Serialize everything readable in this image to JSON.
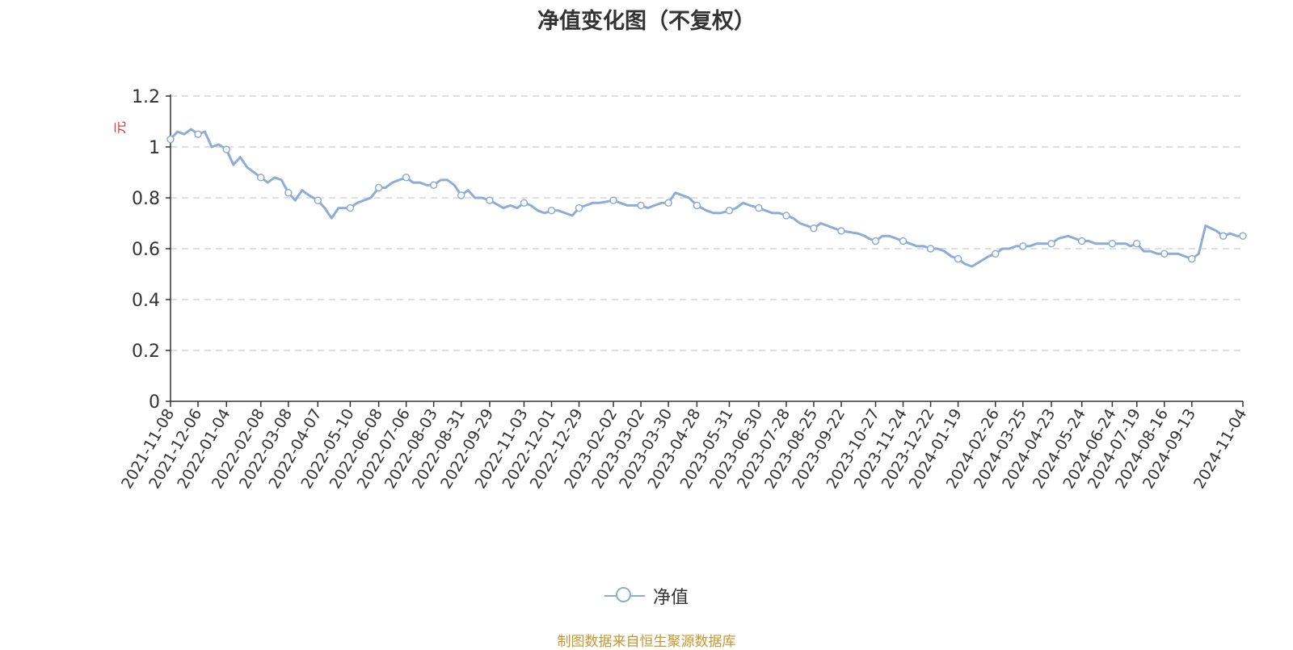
{
  "colors": {
    "series": "#8eacd6",
    "unit": "#e03030",
    "source": "#c8962e",
    "grid": "#cccccc",
    "text": "#333333"
  },
  "chart_data": {
    "type": "line",
    "title": "净值变化图（不复权）",
    "ylabel": "元",
    "ylim": [
      0,
      1.2
    ],
    "yticks": [
      "0",
      "0.2",
      "0.4",
      "0.6",
      "0.8",
      "1",
      "1.2"
    ],
    "grid": true,
    "legend_position": "bottom-center",
    "x_tick_labels": [
      "2021-11-08",
      "2021-12-06",
      "2022-01-04",
      "2022-02-08",
      "2022-03-08",
      "2022-04-07",
      "2022-05-10",
      "2022-06-08",
      "2022-07-06",
      "2022-08-03",
      "2022-08-31",
      "2022-09-29",
      "2022-11-03",
      "2022-12-01",
      "2022-12-29",
      "2023-02-02",
      "2023-03-02",
      "2023-03-30",
      "2023-04-28",
      "2023-05-31",
      "2023-06-30",
      "2023-07-28",
      "2023-08-25",
      "2023-09-22",
      "2023-10-27",
      "2023-11-24",
      "2023-12-22",
      "2024-01-19",
      "2024-02-26",
      "2024-03-25",
      "2024-04-23",
      "2024-05-24",
      "2024-06-24",
      "2024-07-19",
      "2024-08-16",
      "2024-09-13",
      "2024-11-04"
    ],
    "series": [
      {
        "name": "净值",
        "x": [
          "2021-11-08",
          "2021-11-15",
          "2021-11-22",
          "2021-11-29",
          "2021-12-06",
          "2021-12-13",
          "2021-12-20",
          "2021-12-27",
          "2022-01-04",
          "2022-01-11",
          "2022-01-18",
          "2022-01-25",
          "2022-02-08",
          "2022-02-15",
          "2022-02-22",
          "2022-03-01",
          "2022-03-08",
          "2022-03-15",
          "2022-03-22",
          "2022-03-29",
          "2022-04-07",
          "2022-04-14",
          "2022-04-21",
          "2022-04-28",
          "2022-05-10",
          "2022-05-17",
          "2022-05-24",
          "2022-05-31",
          "2022-06-08",
          "2022-06-15",
          "2022-06-22",
          "2022-06-29",
          "2022-07-06",
          "2022-07-13",
          "2022-07-20",
          "2022-07-27",
          "2022-08-03",
          "2022-08-10",
          "2022-08-17",
          "2022-08-24",
          "2022-08-31",
          "2022-09-07",
          "2022-09-14",
          "2022-09-21",
          "2022-09-29",
          "2022-10-13",
          "2022-10-20",
          "2022-10-27",
          "2022-11-03",
          "2022-11-10",
          "2022-11-17",
          "2022-11-24",
          "2022-12-01",
          "2022-12-08",
          "2022-12-15",
          "2022-12-22",
          "2022-12-29",
          "2023-01-05",
          "2023-01-12",
          "2023-01-19",
          "2023-02-02",
          "2023-02-09",
          "2023-02-16",
          "2023-02-23",
          "2023-03-02",
          "2023-03-09",
          "2023-03-16",
          "2023-03-23",
          "2023-03-30",
          "2023-04-06",
          "2023-04-13",
          "2023-04-20",
          "2023-04-28",
          "2023-05-08",
          "2023-05-15",
          "2023-05-22",
          "2023-05-31",
          "2023-06-07",
          "2023-06-14",
          "2023-06-21",
          "2023-06-30",
          "2023-07-07",
          "2023-07-14",
          "2023-07-21",
          "2023-07-28",
          "2023-08-04",
          "2023-08-11",
          "2023-08-18",
          "2023-08-25",
          "2023-09-01",
          "2023-09-08",
          "2023-09-15",
          "2023-09-22",
          "2023-10-09",
          "2023-10-16",
          "2023-10-20",
          "2023-10-27",
          "2023-11-03",
          "2023-11-10",
          "2023-11-17",
          "2023-11-24",
          "2023-12-01",
          "2023-12-08",
          "2023-12-15",
          "2023-12-22",
          "2023-12-29",
          "2024-01-05",
          "2024-01-12",
          "2024-01-19",
          "2024-01-26",
          "2024-02-02",
          "2024-02-19",
          "2024-02-26",
          "2024-03-04",
          "2024-03-11",
          "2024-03-18",
          "2024-03-25",
          "2024-04-01",
          "2024-04-08",
          "2024-04-15",
          "2024-04-23",
          "2024-04-30",
          "2024-05-10",
          "2024-05-17",
          "2024-05-24",
          "2024-05-31",
          "2024-06-07",
          "2024-06-14",
          "2024-06-24",
          "2024-07-01",
          "2024-07-08",
          "2024-07-12",
          "2024-07-19",
          "2024-07-26",
          "2024-08-02",
          "2024-08-09",
          "2024-08-16",
          "2024-08-23",
          "2024-08-30",
          "2024-09-06",
          "2024-09-13",
          "2024-09-20",
          "2024-09-27",
          "2024-10-08",
          "2024-10-15",
          "2024-10-22",
          "2024-10-29",
          "2024-11-04"
        ],
        "values": [
          1.03,
          1.06,
          1.05,
          1.07,
          1.05,
          1.06,
          1.0,
          1.01,
          0.99,
          0.93,
          0.96,
          0.92,
          0.88,
          0.86,
          0.88,
          0.87,
          0.82,
          0.79,
          0.83,
          0.81,
          0.79,
          0.76,
          0.72,
          0.76,
          0.76,
          0.78,
          0.79,
          0.8,
          0.84,
          0.84,
          0.86,
          0.87,
          0.88,
          0.86,
          0.86,
          0.85,
          0.85,
          0.87,
          0.87,
          0.85,
          0.81,
          0.83,
          0.8,
          0.8,
          0.79,
          0.76,
          0.77,
          0.76,
          0.78,
          0.77,
          0.75,
          0.74,
          0.75,
          0.75,
          0.74,
          0.73,
          0.76,
          0.77,
          0.78,
          0.78,
          0.79,
          0.78,
          0.77,
          0.77,
          0.77,
          0.76,
          0.77,
          0.78,
          0.78,
          0.82,
          0.81,
          0.8,
          0.77,
          0.75,
          0.74,
          0.74,
          0.75,
          0.76,
          0.78,
          0.77,
          0.76,
          0.75,
          0.74,
          0.74,
          0.73,
          0.72,
          0.7,
          0.69,
          0.68,
          0.7,
          0.69,
          0.68,
          0.67,
          0.66,
          0.65,
          0.64,
          0.63,
          0.65,
          0.65,
          0.64,
          0.63,
          0.62,
          0.61,
          0.61,
          0.6,
          0.6,
          0.59,
          0.57,
          0.56,
          0.54,
          0.53,
          0.57,
          0.58,
          0.6,
          0.6,
          0.61,
          0.61,
          0.61,
          0.62,
          0.62,
          0.62,
          0.64,
          0.65,
          0.64,
          0.63,
          0.63,
          0.62,
          0.62,
          0.62,
          0.62,
          0.62,
          0.61,
          0.62,
          0.59,
          0.59,
          0.58,
          0.58,
          0.58,
          0.58,
          0.57,
          0.56,
          0.58,
          0.69,
          0.67,
          0.65,
          0.66,
          0.65,
          0.65
        ],
        "markers": [
          "2021-11-08",
          "2021-12-06",
          "2022-01-04",
          "2022-02-08",
          "2022-03-08",
          "2022-04-07",
          "2022-05-10",
          "2022-06-08",
          "2022-07-06",
          "2022-08-03",
          "2022-08-31",
          "2022-09-29",
          "2022-11-03",
          "2022-12-01",
          "2022-12-29",
          "2023-02-02",
          "2023-03-02",
          "2023-03-30",
          "2023-04-28",
          "2023-05-31",
          "2023-06-30",
          "2023-07-28",
          "2023-08-25",
          "2023-09-22",
          "2023-10-27",
          "2023-11-24",
          "2023-12-22",
          "2024-01-19",
          "2024-02-26",
          "2024-03-25",
          "2024-04-23",
          "2024-05-24",
          "2024-06-24",
          "2024-07-19",
          "2024-08-16",
          "2024-09-13",
          "2024-10-15",
          "2024-11-04"
        ]
      }
    ]
  },
  "legend": {
    "label": "净值"
  },
  "source_note": "制图数据来自恒生聚源数据库"
}
